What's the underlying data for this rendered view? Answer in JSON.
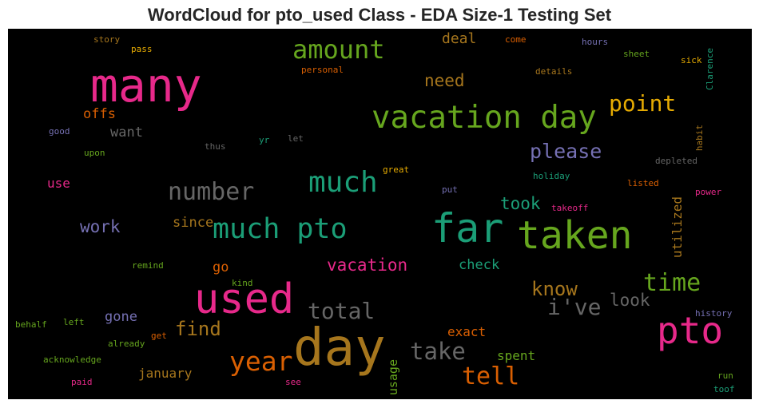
{
  "title": "WordCloud for pto_used Class - EDA Size-1 Testing Set",
  "words": {
    "many": {
      "text": "many",
      "color": "#e7298a"
    },
    "vacation_day": {
      "text": "vacation day",
      "color": "#66a61e"
    },
    "amount": {
      "text": "amount",
      "color": "#66a61e"
    },
    "far": {
      "text": "far",
      "color": "#1b9e77"
    },
    "taken": {
      "text": "taken",
      "color": "#66a61e"
    },
    "day": {
      "text": "day",
      "color": "#a6761d"
    },
    "used": {
      "text": "used",
      "color": "#e7298a"
    },
    "pto": {
      "text": "pto",
      "color": "#e7298a"
    },
    "much": {
      "text": "much",
      "color": "#1b9e77"
    },
    "much_pto": {
      "text": "much pto",
      "color": "#1b9e77"
    },
    "number": {
      "text": "number",
      "color": "#666666"
    },
    "point": {
      "text": "point",
      "color": "#e6ab02"
    },
    "please": {
      "text": "please",
      "color": "#7570b3"
    },
    "need": {
      "text": "need",
      "color": "#a6761d"
    },
    "deal": {
      "text": "deal",
      "color": "#a6761d"
    },
    "time": {
      "text": "time",
      "color": "#66a61e"
    },
    "year": {
      "text": "year",
      "color": "#d95f02"
    },
    "tell": {
      "text": "tell",
      "color": "#d95f02"
    },
    "take": {
      "text": "take",
      "color": "#666666"
    },
    "total": {
      "text": "total",
      "color": "#666666"
    },
    "ive": {
      "text": "i've",
      "color": "#666666"
    },
    "know": {
      "text": "know",
      "color": "#a6761d"
    },
    "find": {
      "text": "find",
      "color": "#a6761d"
    },
    "vacation": {
      "text": "vacation",
      "color": "#e7298a"
    },
    "took": {
      "text": "took",
      "color": "#1b9e77"
    },
    "look": {
      "text": "look",
      "color": "#666666"
    },
    "work": {
      "text": "work",
      "color": "#7570b3"
    },
    "since": {
      "text": "since",
      "color": "#a6761d"
    },
    "offs": {
      "text": "offs",
      "color": "#d95f02"
    },
    "want": {
      "text": "want",
      "color": "#666666"
    },
    "use": {
      "text": "use",
      "color": "#e7298a"
    },
    "check": {
      "text": "check",
      "color": "#1b9e77"
    },
    "utilized": {
      "text": "utilized",
      "color": "#a6761d"
    },
    "exact": {
      "text": "exact",
      "color": "#d95f02"
    },
    "spent": {
      "text": "spent",
      "color": "#66a61e"
    },
    "gone": {
      "text": "gone",
      "color": "#7570b3"
    },
    "go": {
      "text": "go",
      "color": "#d95f02"
    },
    "january": {
      "text": "january",
      "color": "#a6761d"
    },
    "usage": {
      "text": "usage",
      "color": "#66a61e"
    },
    "story": {
      "text": "story",
      "color": "#a6761d"
    },
    "pass": {
      "text": "pass",
      "color": "#e6ab02"
    },
    "come": {
      "text": "come",
      "color": "#d95f02"
    },
    "hours": {
      "text": "hours",
      "color": "#7570b3"
    },
    "sheet": {
      "text": "sheet",
      "color": "#66a61e"
    },
    "sick": {
      "text": "sick",
      "color": "#e6ab02"
    },
    "clarence": {
      "text": "Clarence",
      "color": "#1b9e77"
    },
    "personal": {
      "text": "personal",
      "color": "#d95f02"
    },
    "details": {
      "text": "details",
      "color": "#a6761d"
    },
    "good": {
      "text": "good",
      "color": "#7570b3"
    },
    "upon": {
      "text": "upon",
      "color": "#66a61e"
    },
    "thus": {
      "text": "thus",
      "color": "#666666"
    },
    "yr": {
      "text": "yr",
      "color": "#1b9e77"
    },
    "let": {
      "text": "let",
      "color": "#666666"
    },
    "habit": {
      "text": "habit",
      "color": "#a6761d"
    },
    "depleted": {
      "text": "depleted",
      "color": "#666666"
    },
    "great": {
      "text": "great",
      "color": "#e6ab02"
    },
    "holiday": {
      "text": "holiday",
      "color": "#1b9e77"
    },
    "put": {
      "text": "put",
      "color": "#7570b3"
    },
    "listed": {
      "text": "listed",
      "color": "#d95f02"
    },
    "power": {
      "text": "power",
      "color": "#e7298a"
    },
    "takeoff": {
      "text": "takeoff",
      "color": "#e7298a"
    },
    "remind": {
      "text": "remind",
      "color": "#66a61e"
    },
    "kind": {
      "text": "kind",
      "color": "#66a61e"
    },
    "history": {
      "text": "history",
      "color": "#7570b3"
    },
    "behalf": {
      "text": "behalf",
      "color": "#66a61e"
    },
    "left": {
      "text": "left",
      "color": "#66a61e"
    },
    "already": {
      "text": "already",
      "color": "#66a61e"
    },
    "get": {
      "text": "get",
      "color": "#d95f02"
    },
    "acknowledge": {
      "text": "acknowledge",
      "color": "#66a61e"
    },
    "paid": {
      "text": "paid",
      "color": "#e7298a"
    },
    "see": {
      "text": "see",
      "color": "#e7298a"
    },
    "run": {
      "text": "run",
      "color": "#66a61e"
    },
    "toof": {
      "text": "toof",
      "color": "#1b9e77"
    }
  }
}
